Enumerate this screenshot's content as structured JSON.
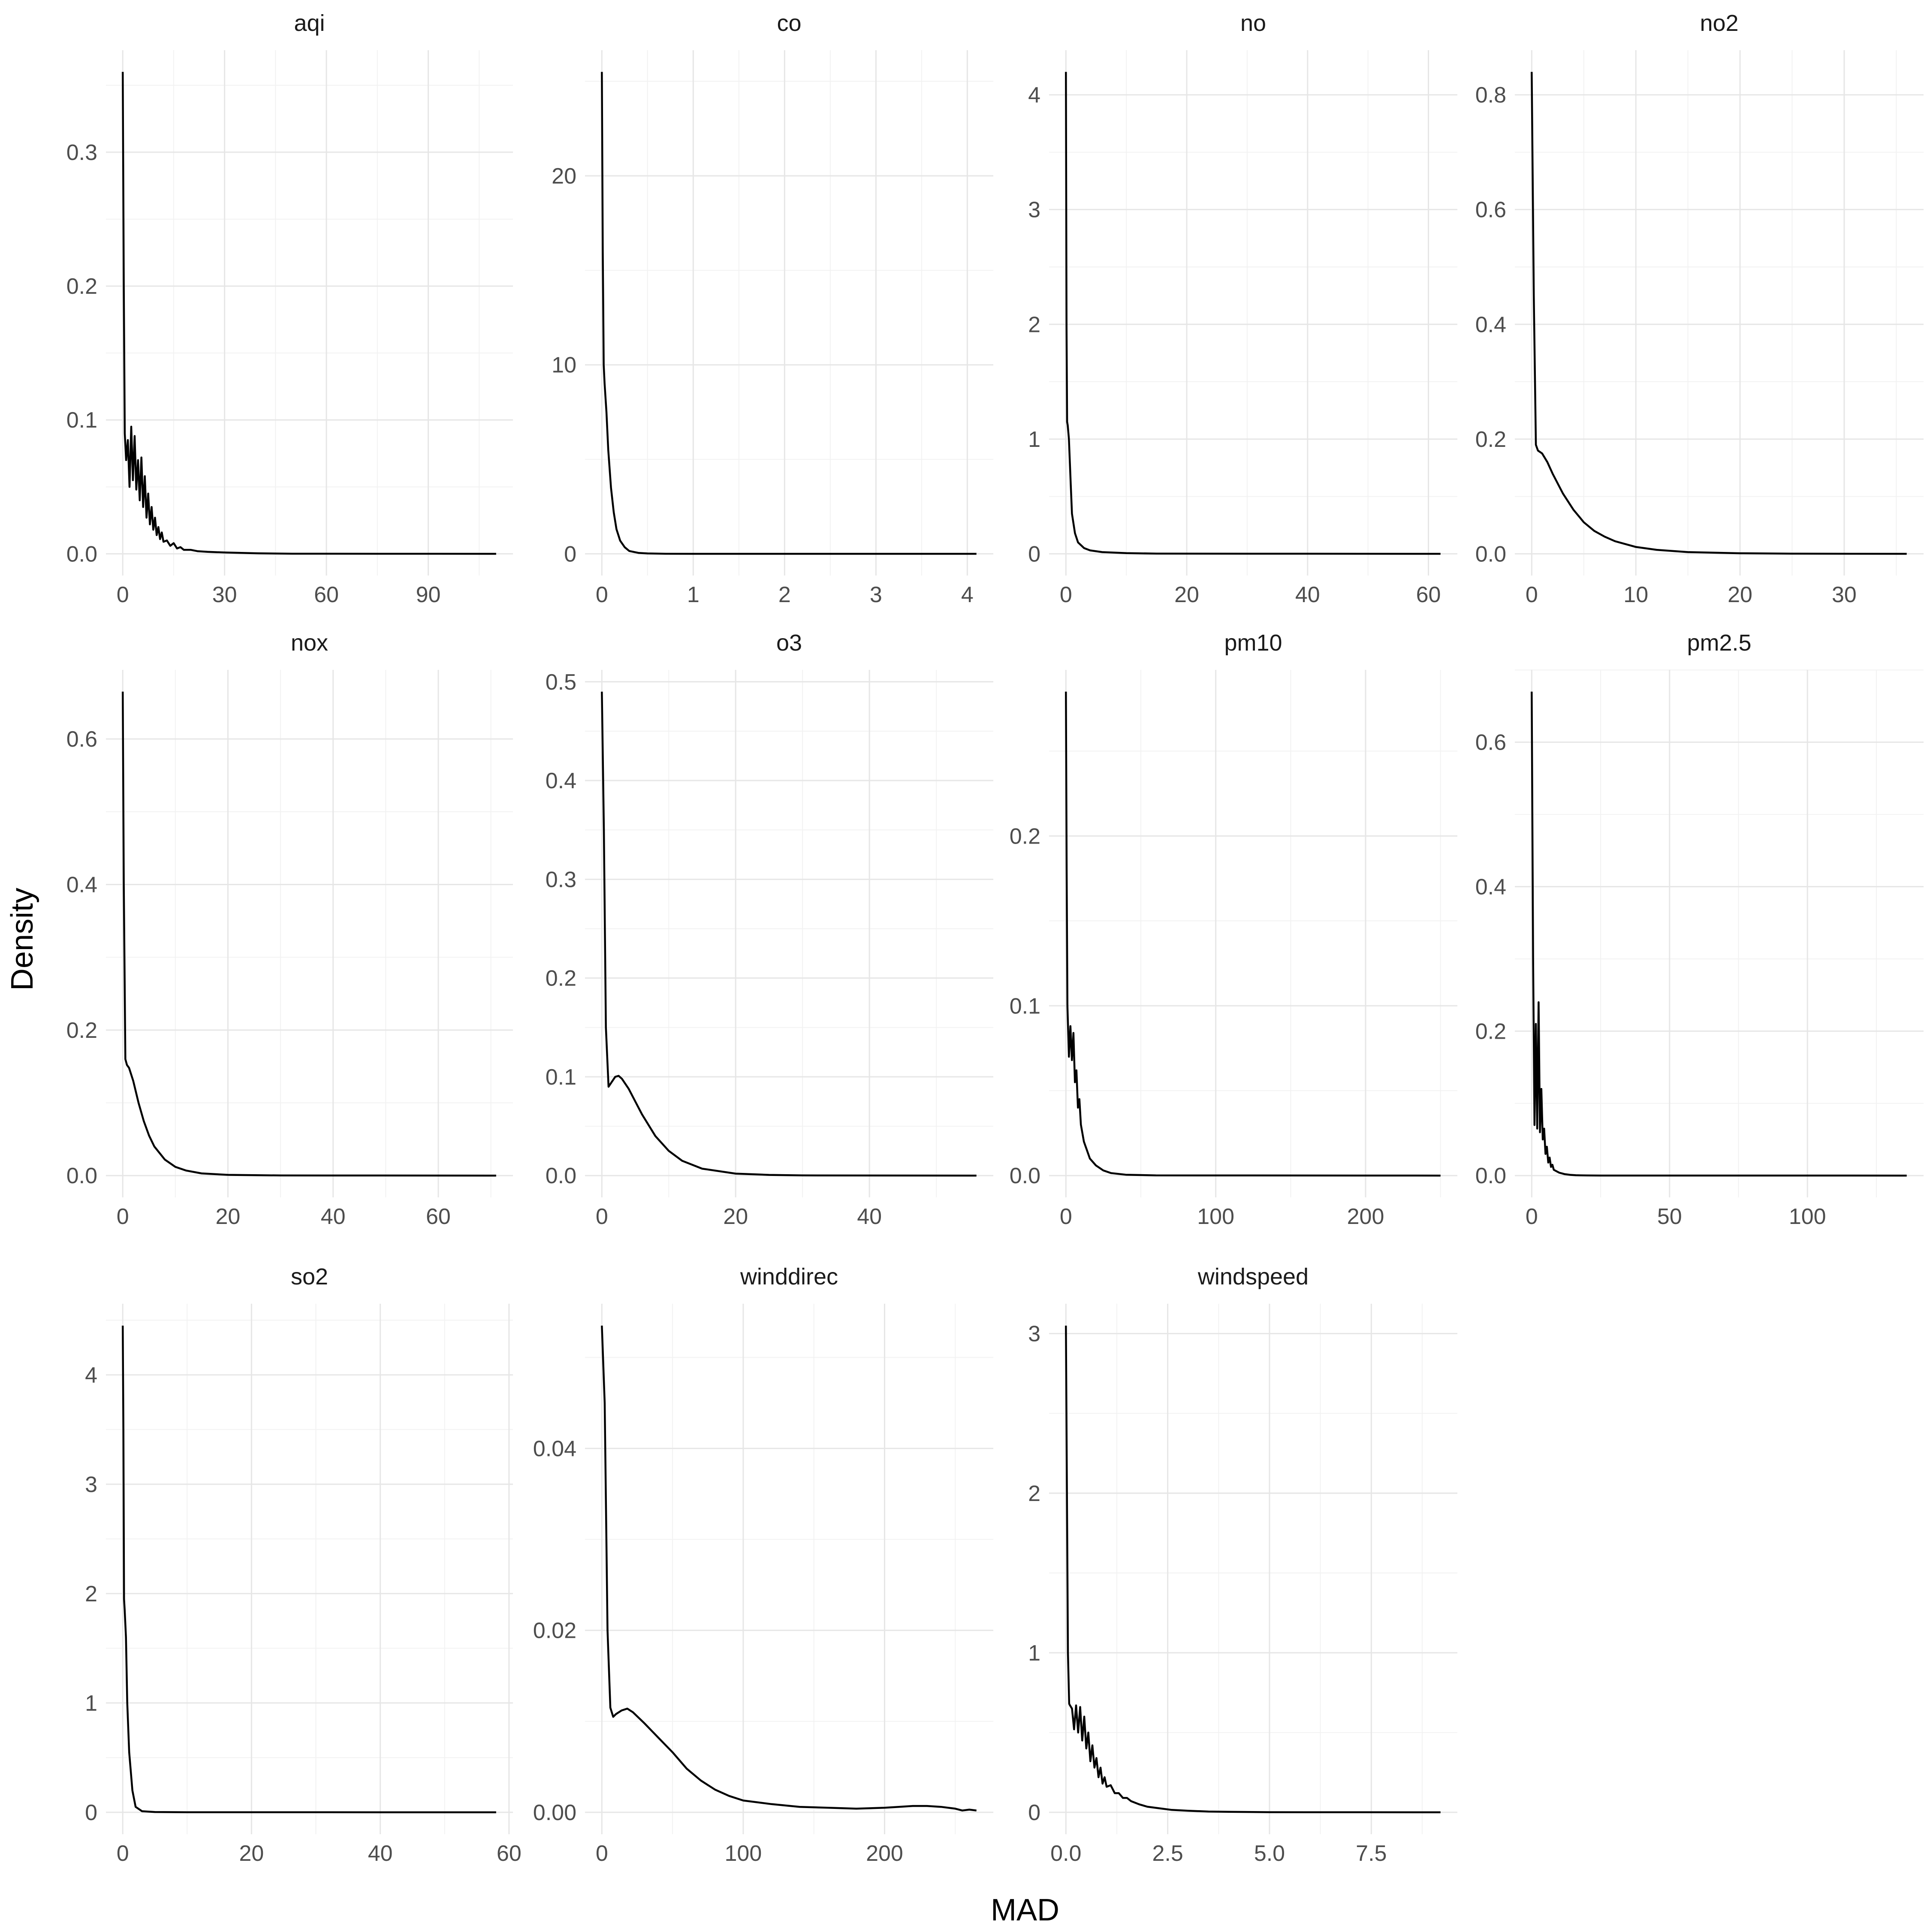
{
  "chart_data": {
    "type": "line",
    "xlabel": "MAD",
    "ylabel": "Density",
    "panels": [
      {
        "name": "aqi",
        "xlim": [
          0,
          110
        ],
        "ylim": [
          0,
          0.36
        ],
        "xticks": [
          0,
          30,
          60,
          90
        ],
        "xtick_labels": [
          "0",
          "30",
          "60",
          "90"
        ],
        "yticks": [
          0,
          0.1,
          0.2,
          0.3
        ],
        "ytick_labels": [
          "0.0",
          "0.1",
          "0.2",
          "0.3"
        ],
        "series": [
          {
            "x": [
              0,
              0.3,
              0.6,
              1,
              1.5,
              2,
              2.5,
              3,
              3.5,
              4,
              4.5,
              5,
              5.5,
              6,
              6.5,
              7,
              7.5,
              8,
              8.5,
              9,
              9.5,
              10,
              10.5,
              11,
              11.5,
              12,
              13,
              14,
              15,
              16,
              17,
              18,
              20,
              22,
              25,
              30,
              40,
              50,
              110
            ],
            "y": [
              0.36,
              0.2,
              0.09,
              0.07,
              0.085,
              0.05,
              0.095,
              0.055,
              0.088,
              0.048,
              0.07,
              0.04,
              0.072,
              0.035,
              0.058,
              0.027,
              0.045,
              0.022,
              0.035,
              0.018,
              0.027,
              0.014,
              0.02,
              0.011,
              0.016,
              0.009,
              0.01,
              0.006,
              0.008,
              0.004,
              0.005,
              0.003,
              0.003,
              0.002,
              0.0015,
              0.001,
              0.0004,
              0.0001,
              0
            ]
          }
        ]
      },
      {
        "name": "co",
        "xlim": [
          0,
          4.1
        ],
        "ylim": [
          0,
          25.5
        ],
        "xticks": [
          0,
          1,
          2,
          3,
          4
        ],
        "xtick_labels": [
          "0",
          "1",
          "2",
          "3",
          "4"
        ],
        "yticks": [
          0,
          10,
          20
        ],
        "ytick_labels": [
          "0",
          "10",
          "20"
        ],
        "series": [
          {
            "x": [
              0,
              0.01,
              0.02,
              0.03,
              0.05,
              0.07,
              0.1,
              0.13,
              0.16,
              0.2,
              0.25,
              0.3,
              0.4,
              0.5,
              0.7,
              1,
              4.1
            ],
            "y": [
              25.5,
              16,
              10,
              9,
              7.5,
              5.5,
              3.5,
              2.2,
              1.3,
              0.7,
              0.35,
              0.15,
              0.05,
              0.02,
              0.005,
              0.001,
              0
            ]
          }
        ]
      },
      {
        "name": "no",
        "xlim": [
          0,
          62
        ],
        "ylim": [
          0,
          4.2
        ],
        "xticks": [
          0,
          20,
          40,
          60
        ],
        "xtick_labels": [
          "0",
          "20",
          "40",
          "60"
        ],
        "yticks": [
          0,
          1,
          2,
          3,
          4
        ],
        "ytick_labels": [
          "0",
          "1",
          "2",
          "3",
          "4"
        ],
        "series": [
          {
            "x": [
              0,
              0.1,
              0.2,
              0.3,
              0.5,
              0.8,
              1,
              1.5,
              2,
              3,
              4,
              6,
              10,
              15,
              62
            ],
            "y": [
              4.2,
              2,
              1.15,
              1.12,
              1,
              0.6,
              0.35,
              0.18,
              0.1,
              0.05,
              0.03,
              0.015,
              0.006,
              0.002,
              0
            ]
          }
        ]
      },
      {
        "name": "no2",
        "xlim": [
          0,
          36
        ],
        "ylim": [
          0,
          0.84
        ],
        "xticks": [
          0,
          10,
          20,
          30
        ],
        "xtick_labels": [
          "0",
          "10",
          "20",
          "30"
        ],
        "yticks": [
          0,
          0.2,
          0.4,
          0.6,
          0.8
        ],
        "ytick_labels": [
          "0.0",
          "0.2",
          "0.4",
          "0.6",
          "0.8"
        ],
        "series": [
          {
            "x": [
              0,
              0.2,
              0.4,
              0.6,
              1,
              1.5,
              2,
              3,
              4,
              5,
              6,
              7,
              8,
              10,
              12,
              15,
              20,
              25,
              36
            ],
            "y": [
              0.84,
              0.45,
              0.19,
              0.18,
              0.175,
              0.16,
              0.14,
              0.105,
              0.077,
              0.055,
              0.04,
              0.03,
              0.022,
              0.012,
              0.007,
              0.003,
              0.001,
              0.0003,
              0
            ]
          }
        ]
      },
      {
        "name": "nox",
        "xlim": [
          0,
          71
        ],
        "ylim": [
          0,
          0.665
        ],
        "xticks": [
          0,
          20,
          40,
          60
        ],
        "xtick_labels": [
          "0",
          "20",
          "40",
          "60"
        ],
        "yticks": [
          0,
          0.2,
          0.4,
          0.6
        ],
        "ytick_labels": [
          "0.0",
          "0.2",
          "0.4",
          "0.6"
        ],
        "series": [
          {
            "x": [
              0,
              0.2,
              0.5,
              0.8,
              1.2,
              2,
              3,
              4,
              5,
              6,
              8,
              10,
              12,
              15,
              20,
              30,
              71
            ],
            "y": [
              0.665,
              0.4,
              0.16,
              0.152,
              0.148,
              0.13,
              0.1,
              0.075,
              0.055,
              0.04,
              0.022,
              0.012,
              0.007,
              0.003,
              0.001,
              0.0002,
              0
            ]
          }
        ]
      },
      {
        "name": "o3",
        "xlim": [
          0,
          56
        ],
        "ylim": [
          0,
          0.49
        ],
        "xticks": [
          0,
          20,
          40
        ],
        "xtick_labels": [
          "0",
          "20",
          "40"
        ],
        "yticks": [
          0,
          0.1,
          0.2,
          0.3,
          0.4,
          0.5
        ],
        "ytick_labels": [
          "0.0",
          "0.1",
          "0.2",
          "0.3",
          "0.4",
          "0.5"
        ],
        "series": [
          {
            "x": [
              0,
              0.3,
              0.6,
              1,
              1.5,
              2,
              2.5,
              3,
              4,
              5,
              6,
              8,
              10,
              12,
              15,
              20,
              25,
              30,
              56
            ],
            "y": [
              0.49,
              0.35,
              0.15,
              0.09,
              0.095,
              0.1,
              0.101,
              0.098,
              0.088,
              0.075,
              0.062,
              0.04,
              0.025,
              0.015,
              0.007,
              0.002,
              0.0007,
              0.0002,
              0
            ]
          }
        ]
      },
      {
        "name": "pm10",
        "xlim": [
          0,
          250
        ],
        "ylim": [
          0,
          0.285
        ],
        "xticks": [
          0,
          100,
          200
        ],
        "xtick_labels": [
          "0",
          "100",
          "200"
        ],
        "yticks": [
          0,
          0.1,
          0.2
        ],
        "ytick_labels": [
          "0.0",
          "0.1",
          "0.2"
        ],
        "series": [
          {
            "x": [
              0,
              0.5,
              1,
              2,
              3,
              4,
              5,
              6,
              7,
              8,
              9,
              10,
              12,
              14,
              16,
              18,
              20,
              25,
              30,
              40,
              60,
              250
            ],
            "y": [
              0.285,
              0.18,
              0.1,
              0.07,
              0.088,
              0.068,
              0.084,
              0.055,
              0.062,
              0.04,
              0.045,
              0.03,
              0.02,
              0.015,
              0.01,
              0.008,
              0.006,
              0.003,
              0.0015,
              0.0005,
              0.0001,
              0
            ]
          }
        ]
      },
      {
        "name": "pm2.5",
        "xlim": [
          0,
          136
        ],
        "ylim": [
          0,
          0.67
        ],
        "xticks": [
          0,
          50,
          100
        ],
        "xtick_labels": [
          "0",
          "50",
          "100"
        ],
        "yticks": [
          0,
          0.2,
          0.4,
          0.6
        ],
        "ytick_labels": [
          "0.0",
          "0.2",
          "0.4",
          "0.6"
        ],
        "series": [
          {
            "x": [
              0,
              0.5,
              1,
              1.5,
              2,
              2.5,
              3,
              3.5,
              4,
              4.5,
              5,
              5.5,
              6,
              6.5,
              7,
              7.5,
              8,
              9,
              10,
              11,
              12,
              14,
              16,
              20,
              25,
              136
            ],
            "y": [
              0.67,
              0.3,
              0.07,
              0.21,
              0.065,
              0.24,
              0.06,
              0.12,
              0.05,
              0.065,
              0.03,
              0.04,
              0.018,
              0.025,
              0.012,
              0.015,
              0.008,
              0.006,
              0.004,
              0.003,
              0.002,
              0.001,
              0.0005,
              0.0002,
              0.0001,
              0
            ]
          }
        ]
      },
      {
        "name": "so2",
        "xlim": [
          0,
          58
        ],
        "ylim": [
          0,
          4.45
        ],
        "xticks": [
          0,
          20,
          40,
          60
        ],
        "xtick_labels": [
          "0",
          "20",
          "40",
          "60"
        ],
        "yticks": [
          0,
          1,
          2,
          3,
          4
        ],
        "ytick_labels": [
          "0",
          "1",
          "2",
          "3",
          "4"
        ],
        "series": [
          {
            "x": [
              0,
              0.1,
              0.2,
              0.3,
              0.5,
              0.7,
              1,
              1.5,
              2,
              3,
              5,
              10,
              58
            ],
            "y": [
              4.45,
              3.5,
              1.95,
              1.85,
              1.6,
              1.0,
              0.55,
              0.2,
              0.05,
              0.01,
              0.003,
              0.001,
              0
            ]
          }
        ]
      },
      {
        "name": "winddirec",
        "xlim": [
          0,
          265
        ],
        "ylim": [
          0,
          0.0535
        ],
        "xticks": [
          0,
          100,
          200
        ],
        "xtick_labels": [
          "0",
          "100",
          "200"
        ],
        "yticks": [
          0,
          0.02,
          0.04
        ],
        "ytick_labels": [
          "0.00",
          "0.02",
          "0.04"
        ],
        "series": [
          {
            "x": [
              0,
              2,
              4,
              6,
              8,
              10,
              14,
              18,
              22,
              30,
              40,
              50,
              60,
              70,
              80,
              90,
              100,
              120,
              140,
              160,
              180,
              200,
              210,
              220,
              230,
              240,
              250,
              255,
              260,
              265
            ],
            "y": [
              0.0535,
              0.045,
              0.02,
              0.0115,
              0.0105,
              0.0108,
              0.0112,
              0.0114,
              0.011,
              0.0098,
              0.0082,
              0.0066,
              0.0048,
              0.0035,
              0.0025,
              0.0018,
              0.0013,
              0.0009,
              0.0006,
              0.0005,
              0.0004,
              0.0005,
              0.0006,
              0.0007,
              0.0007,
              0.0006,
              0.0004,
              0.0002,
              0.0003,
              0.0002
            ]
          }
        ]
      },
      {
        "name": "windspeed",
        "xlim": [
          0,
          9.2
        ],
        "ylim": [
          0,
          3.05
        ],
        "xticks": [
          0,
          2.5,
          5,
          7.5
        ],
        "xtick_labels": [
          "0.0",
          "2.5",
          "5.0",
          "7.5"
        ],
        "yticks": [
          0,
          1,
          2,
          3
        ],
        "ytick_labels": [
          "0",
          "1",
          "2",
          "3"
        ],
        "series": [
          {
            "x": [
              0,
              0.02,
              0.05,
              0.08,
              0.1,
              0.15,
              0.2,
              0.25,
              0.3,
              0.35,
              0.4,
              0.45,
              0.5,
              0.55,
              0.6,
              0.65,
              0.7,
              0.75,
              0.8,
              0.85,
              0.9,
              0.95,
              1,
              1.1,
              1.2,
              1.3,
              1.4,
              1.5,
              1.6,
              1.8,
              2,
              2.3,
              2.6,
              3,
              3.5,
              4,
              5,
              6,
              9.2
            ],
            "y": [
              3.05,
              2.2,
              1.0,
              0.68,
              0.67,
              0.65,
              0.52,
              0.67,
              0.5,
              0.66,
              0.45,
              0.6,
              0.4,
              0.5,
              0.32,
              0.42,
              0.28,
              0.34,
              0.22,
              0.28,
              0.18,
              0.22,
              0.16,
              0.17,
              0.12,
              0.12,
              0.09,
              0.09,
              0.07,
              0.05,
              0.035,
              0.025,
              0.015,
              0.01,
              0.005,
              0.003,
              0.001,
              0.0005,
              0
            ]
          }
        ]
      }
    ]
  }
}
